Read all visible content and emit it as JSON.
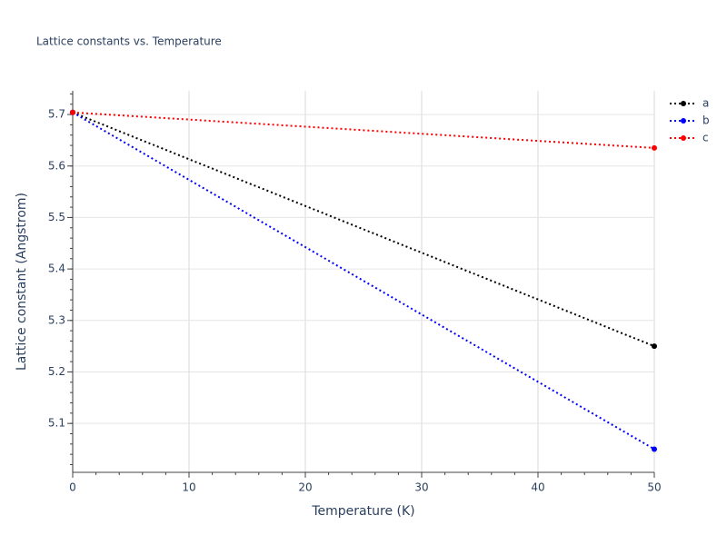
{
  "chart_data": {
    "type": "line",
    "title": "Lattice constants vs. Temperature",
    "x_label": "Temperature (K)",
    "y_label": "Lattice constant (Angstrom)",
    "x": [
      0,
      50
    ],
    "series": [
      {
        "name": "a",
        "color": "#000000",
        "values": [
          5.704,
          5.25
        ]
      },
      {
        "name": "b",
        "color": "#0000ff",
        "values": [
          5.704,
          5.05
        ]
      },
      {
        "name": "c",
        "color": "#ff0000",
        "values": [
          5.704,
          5.635
        ]
      }
    ],
    "xlim": [
      0,
      50
    ],
    "xticks": [
      0,
      10,
      20,
      30,
      40,
      50
    ],
    "ylim": [
      5.005,
      5.746
    ],
    "yticks": [
      5.1,
      5.2,
      5.3,
      5.4,
      5.5,
      5.6,
      5.7
    ],
    "grid": true,
    "legend": "right",
    "line_style": "dotted"
  }
}
